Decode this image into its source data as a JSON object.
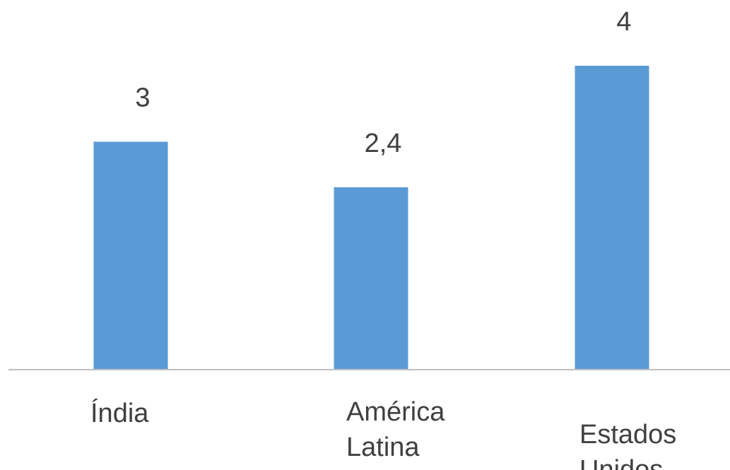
{
  "chart_data": {
    "type": "bar",
    "categories": [
      [
        "Índia"
      ],
      [
        "América",
        "Latina"
      ],
      [
        "Estados",
        "Unidos"
      ]
    ],
    "values": [
      3,
      2.4,
      4
    ],
    "data_labels": [
      "3",
      "2,4",
      "4"
    ],
    "ylim": [
      0,
      4
    ],
    "grid": false,
    "legend": "none",
    "colors": {
      "bar": "#5b9bd5",
      "axis": "#bfbfbf",
      "text": "#404040"
    }
  }
}
